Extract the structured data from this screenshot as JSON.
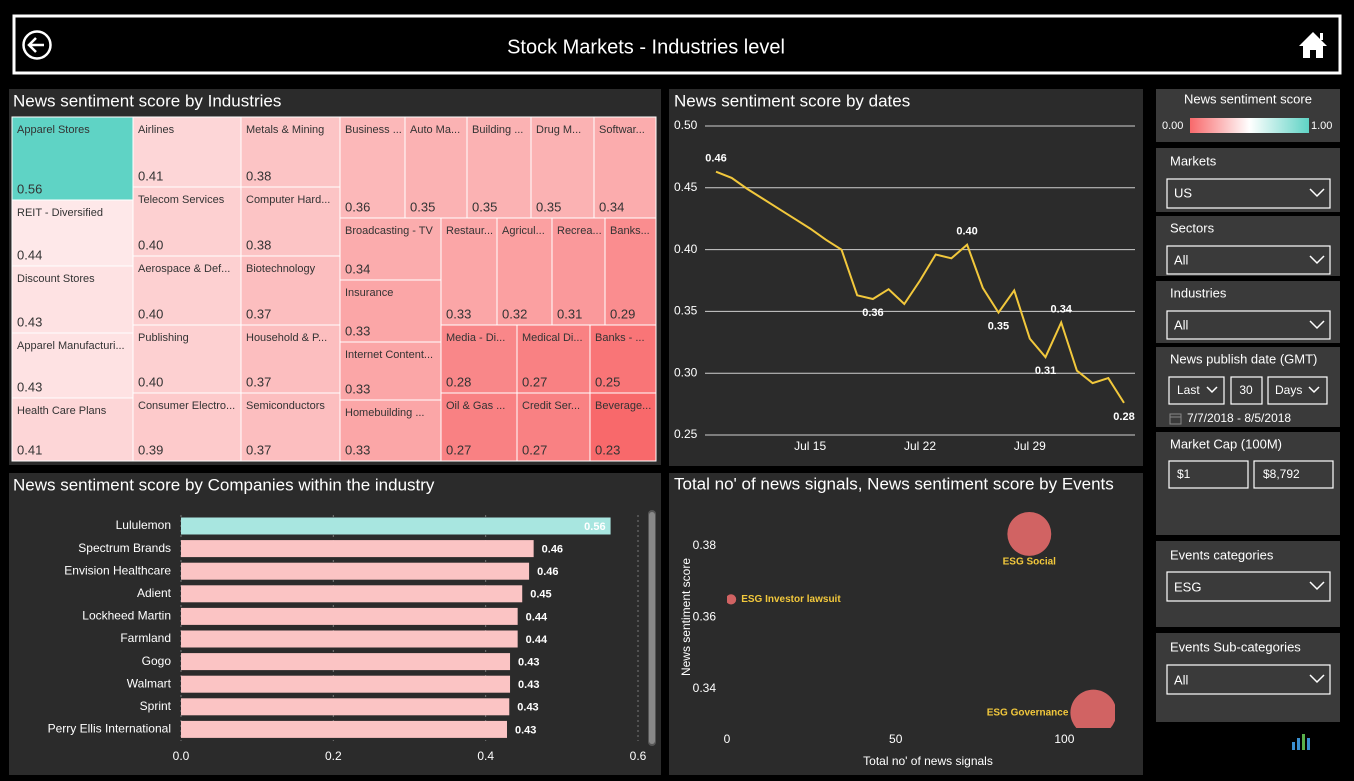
{
  "header": {
    "title": "Stock Markets - Industries level"
  },
  "chart_data": [
    {
      "type": "treemap",
      "title": "News sentiment score by Industries",
      "categories": [
        "Apparel Stores",
        "REIT - Diversified",
        "Discount Stores",
        "Apparel Manufacturi...",
        "Health Care Plans",
        "Airlines",
        "Telecom Services",
        "Aerospace & Def...",
        "Publishing",
        "Consumer Electro...",
        "Metals & Mining",
        "Computer Hard...",
        "Biotechnology",
        "Household & P...",
        "Semiconductors",
        "Business ...",
        "Auto Ma...",
        "Building ...",
        "Drug M...",
        "Softwar...",
        "Broadcasting - TV",
        "Insurance",
        "Internet Content...",
        "Homebuilding ...",
        "Restaur...",
        "Agricul...",
        "Recrea...",
        "Banks...",
        "Media - Di...",
        "Medical Di...",
        "Banks - ...",
        "Oil & Gas ...",
        "Credit Ser...",
        "Beverage..."
      ],
      "values": [
        0.56,
        0.44,
        0.43,
        0.43,
        0.41,
        0.41,
        0.4,
        0.4,
        0.4,
        0.39,
        0.38,
        0.38,
        0.37,
        0.37,
        0.37,
        0.36,
        0.35,
        0.35,
        0.35,
        0.34,
        0.34,
        0.33,
        0.33,
        0.33,
        0.33,
        0.32,
        0.31,
        0.29,
        0.28,
        0.27,
        0.25,
        0.27,
        0.27,
        0.23
      ],
      "value_labels": [
        "0.56",
        "0.44",
        "0.43",
        "0.43",
        "0.41",
        "0.41",
        "0.40",
        "0.40",
        "0.40",
        "0.39",
        "0.38",
        "0.38",
        "0.37",
        "0.37",
        "0.37",
        "0.36",
        "0.35",
        "0.35",
        "0.35",
        "0.34",
        "0.34",
        "0.33",
        "0.33",
        "0.33",
        "0.33",
        "0.32",
        "0.31",
        "0.29",
        "0.28",
        "0.27",
        "0.25",
        "0.27",
        "0.27",
        "0.23"
      ],
      "color_scale": [
        "#f8696b",
        "#ffffff",
        "#5fd3c5"
      ]
    },
    {
      "type": "line",
      "title": "News sentiment score by dates",
      "x": [
        "Jul 9",
        "Jul 10",
        "Jul 11",
        "Jul 12",
        "Jul 13",
        "Jul 14",
        "Jul 15",
        "Jul 16",
        "Jul 17",
        "Jul 18",
        "Jul 19",
        "Jul 20",
        "Jul 21",
        "Jul 22",
        "Jul 23",
        "Jul 24",
        "Jul 25",
        "Jul 26",
        "Jul 27",
        "Jul 28",
        "Jul 29",
        "Jul 30",
        "Jul 31",
        "Aug 1",
        "Aug 2",
        "Aug 3",
        "Aug 4"
      ],
      "values": [
        0.463,
        0.458,
        0.449,
        0.441,
        0.433,
        0.425,
        0.417,
        0.408,
        0.4,
        0.363,
        0.36,
        0.368,
        0.356,
        0.375,
        0.396,
        0.393,
        0.404,
        0.369,
        0.349,
        0.367,
        0.328,
        0.313,
        0.341,
        0.302,
        0.292,
        0.296,
        0.276
      ],
      "value_labels": [
        "0.46",
        null,
        null,
        null,
        null,
        null,
        null,
        null,
        null,
        null,
        "0.36",
        null,
        null,
        null,
        null,
        null,
        "0.40",
        null,
        "0.35",
        null,
        null,
        "0.31",
        "0.34",
        null,
        null,
        null,
        "0.28"
      ],
      "color": "#f2c83c",
      "xticks": [
        "Jul 15",
        "Jul 22",
        "Jul 29"
      ],
      "ylim": [
        0.25,
        0.5
      ],
      "yticks": [
        0.25,
        {
          "value": 0.3,
          "label": "0.30"
        },
        0.35,
        {
          "value": 0.4,
          "label": "0.40"
        },
        0.45,
        {
          "value": 0.5,
          "label": "0.50"
        }
      ],
      "grid": true
    },
    {
      "type": "hbar",
      "title": "News sentiment score by Companies within the industry",
      "categories": [
        "Lululemon",
        "Spectrum Brands",
        "Envision Healthcare",
        "Adient",
        "Lockheed Martin",
        "Farmland",
        "Gogo",
        "Walmart",
        "Sprint",
        "Perry Ellis International"
      ],
      "values": [
        0.564,
        0.463,
        0.457,
        0.448,
        0.442,
        0.442,
        0.432,
        0.432,
        0.431,
        0.428
      ],
      "value_labels": [
        "0.56",
        "0.46",
        "0.46",
        "0.45",
        "0.44",
        "0.44",
        "0.43",
        "0.43",
        "0.43",
        "0.43"
      ],
      "colors": [
        "#a8e6e0",
        "#fbc4c4",
        "#fbc4c4",
        "#fbc4c4",
        "#fbc4c4",
        "#fbc4c4",
        "#fbc4c4",
        "#fbc4c4",
        "#fbc4c4",
        "#fbc4c4"
      ],
      "xlim": [
        0,
        0.6
      ],
      "xticks": [
        {
          "value": 0,
          "label": "0.0"
        },
        0.2,
        0.4,
        0.6
      ],
      "grid": true
    },
    {
      "type": "bubble",
      "title": "Total no' of news signals, News sentiment score by Events",
      "x_label": "Total no' of news signals",
      "y_label": "News sentiment score",
      "categories": [
        "ESG Social",
        "ESG Investor lawsuit",
        "ESG Governance"
      ],
      "x": [
        89.6,
        1.2,
        108.6
      ],
      "values": [
        0.3833,
        0.365,
        0.3333
      ],
      "sizes": [
        91,
        5,
        100
      ],
      "color": "#e06868",
      "label_color": "#f2c83c",
      "xlim": [
        0,
        115
      ],
      "ylim": [
        0.329,
        0.39
      ],
      "xticks": [
        0,
        50,
        100
      ],
      "yticks": [
        0.34,
        0.36,
        0.38
      ]
    }
  ],
  "slicers": {
    "color_legend": {
      "title": "News sentiment score",
      "min": "0.00",
      "max": "1.00"
    },
    "markets": {
      "label": "Markets",
      "value": "US"
    },
    "sectors": {
      "label": "Sectors",
      "value": "All"
    },
    "industries": {
      "label": "Industries",
      "value": "All"
    },
    "publish_date": {
      "label": "News publish date (GMT)",
      "mode": "Last",
      "count": "30",
      "unit": "Days",
      "range": "7/7/2018 - 8/5/2018"
    },
    "market_cap": {
      "label": "Market Cap (100M)",
      "min": "$1",
      "max": "$8,792"
    },
    "events_categories": {
      "label": "Events categories",
      "value": "ESG"
    },
    "events_subcategories": {
      "label": "Events Sub-categories",
      "value": "All"
    }
  }
}
